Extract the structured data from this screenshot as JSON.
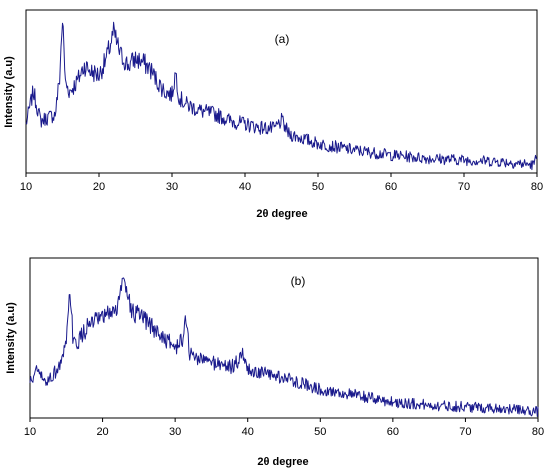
{
  "series_color": "#1a1a8c",
  "chart_data": [
    {
      "type": "line",
      "panel_label": "(a)",
      "xlabel": "2θ degree",
      "ylabel": "Intensity (a.u)",
      "xlim": [
        10,
        80
      ],
      "ylim": [
        0,
        1
      ],
      "x_ticks": [
        10,
        20,
        30,
        40,
        50,
        60,
        70,
        80
      ],
      "y_ticks_shown": false,
      "grid": false,
      "x": [
        10,
        11,
        12,
        13,
        14,
        14.6,
        15,
        15.4,
        16,
        17,
        18,
        19,
        20,
        21,
        22,
        23,
        24,
        25,
        26,
        27,
        28,
        29,
        30,
        30.5,
        31,
        32,
        34,
        36,
        38,
        40,
        42,
        44,
        45,
        46,
        48,
        50,
        55,
        60,
        65,
        70,
        75,
        79.5,
        80
      ],
      "y": [
        0.3,
        0.5,
        0.32,
        0.34,
        0.36,
        0.58,
        0.95,
        0.55,
        0.5,
        0.56,
        0.66,
        0.62,
        0.6,
        0.7,
        0.86,
        0.72,
        0.66,
        0.7,
        0.68,
        0.64,
        0.56,
        0.5,
        0.48,
        0.62,
        0.46,
        0.42,
        0.38,
        0.36,
        0.32,
        0.3,
        0.28,
        0.27,
        0.32,
        0.24,
        0.21,
        0.18,
        0.14,
        0.11,
        0.09,
        0.08,
        0.07,
        0.05,
        0.1
      ]
    },
    {
      "type": "line",
      "panel_label": "(b)",
      "xlabel": "2θ degree",
      "ylabel": "Intensity (a.u)",
      "xlim": [
        10,
        80
      ],
      "ylim": [
        0,
        1
      ],
      "x_ticks": [
        10,
        20,
        30,
        40,
        50,
        60,
        70,
        80
      ],
      "y_ticks_shown": false,
      "grid": false,
      "x": [
        10,
        11,
        12,
        13,
        14,
        15,
        15.5,
        16,
        17,
        18,
        19,
        20,
        21,
        22,
        23,
        24,
        25,
        26,
        27,
        28,
        29,
        30,
        31,
        31.5,
        32,
        34,
        36,
        38,
        39.5,
        40,
        42,
        44,
        46,
        48,
        50,
        55,
        60,
        65,
        70,
        75,
        80
      ],
      "y": [
        0.22,
        0.3,
        0.22,
        0.26,
        0.32,
        0.45,
        0.8,
        0.45,
        0.5,
        0.58,
        0.6,
        0.62,
        0.66,
        0.68,
        0.9,
        0.66,
        0.64,
        0.6,
        0.56,
        0.52,
        0.48,
        0.44,
        0.48,
        0.64,
        0.4,
        0.36,
        0.34,
        0.32,
        0.4,
        0.3,
        0.28,
        0.26,
        0.24,
        0.21,
        0.18,
        0.14,
        0.1,
        0.08,
        0.07,
        0.06,
        0.04
      ]
    }
  ]
}
